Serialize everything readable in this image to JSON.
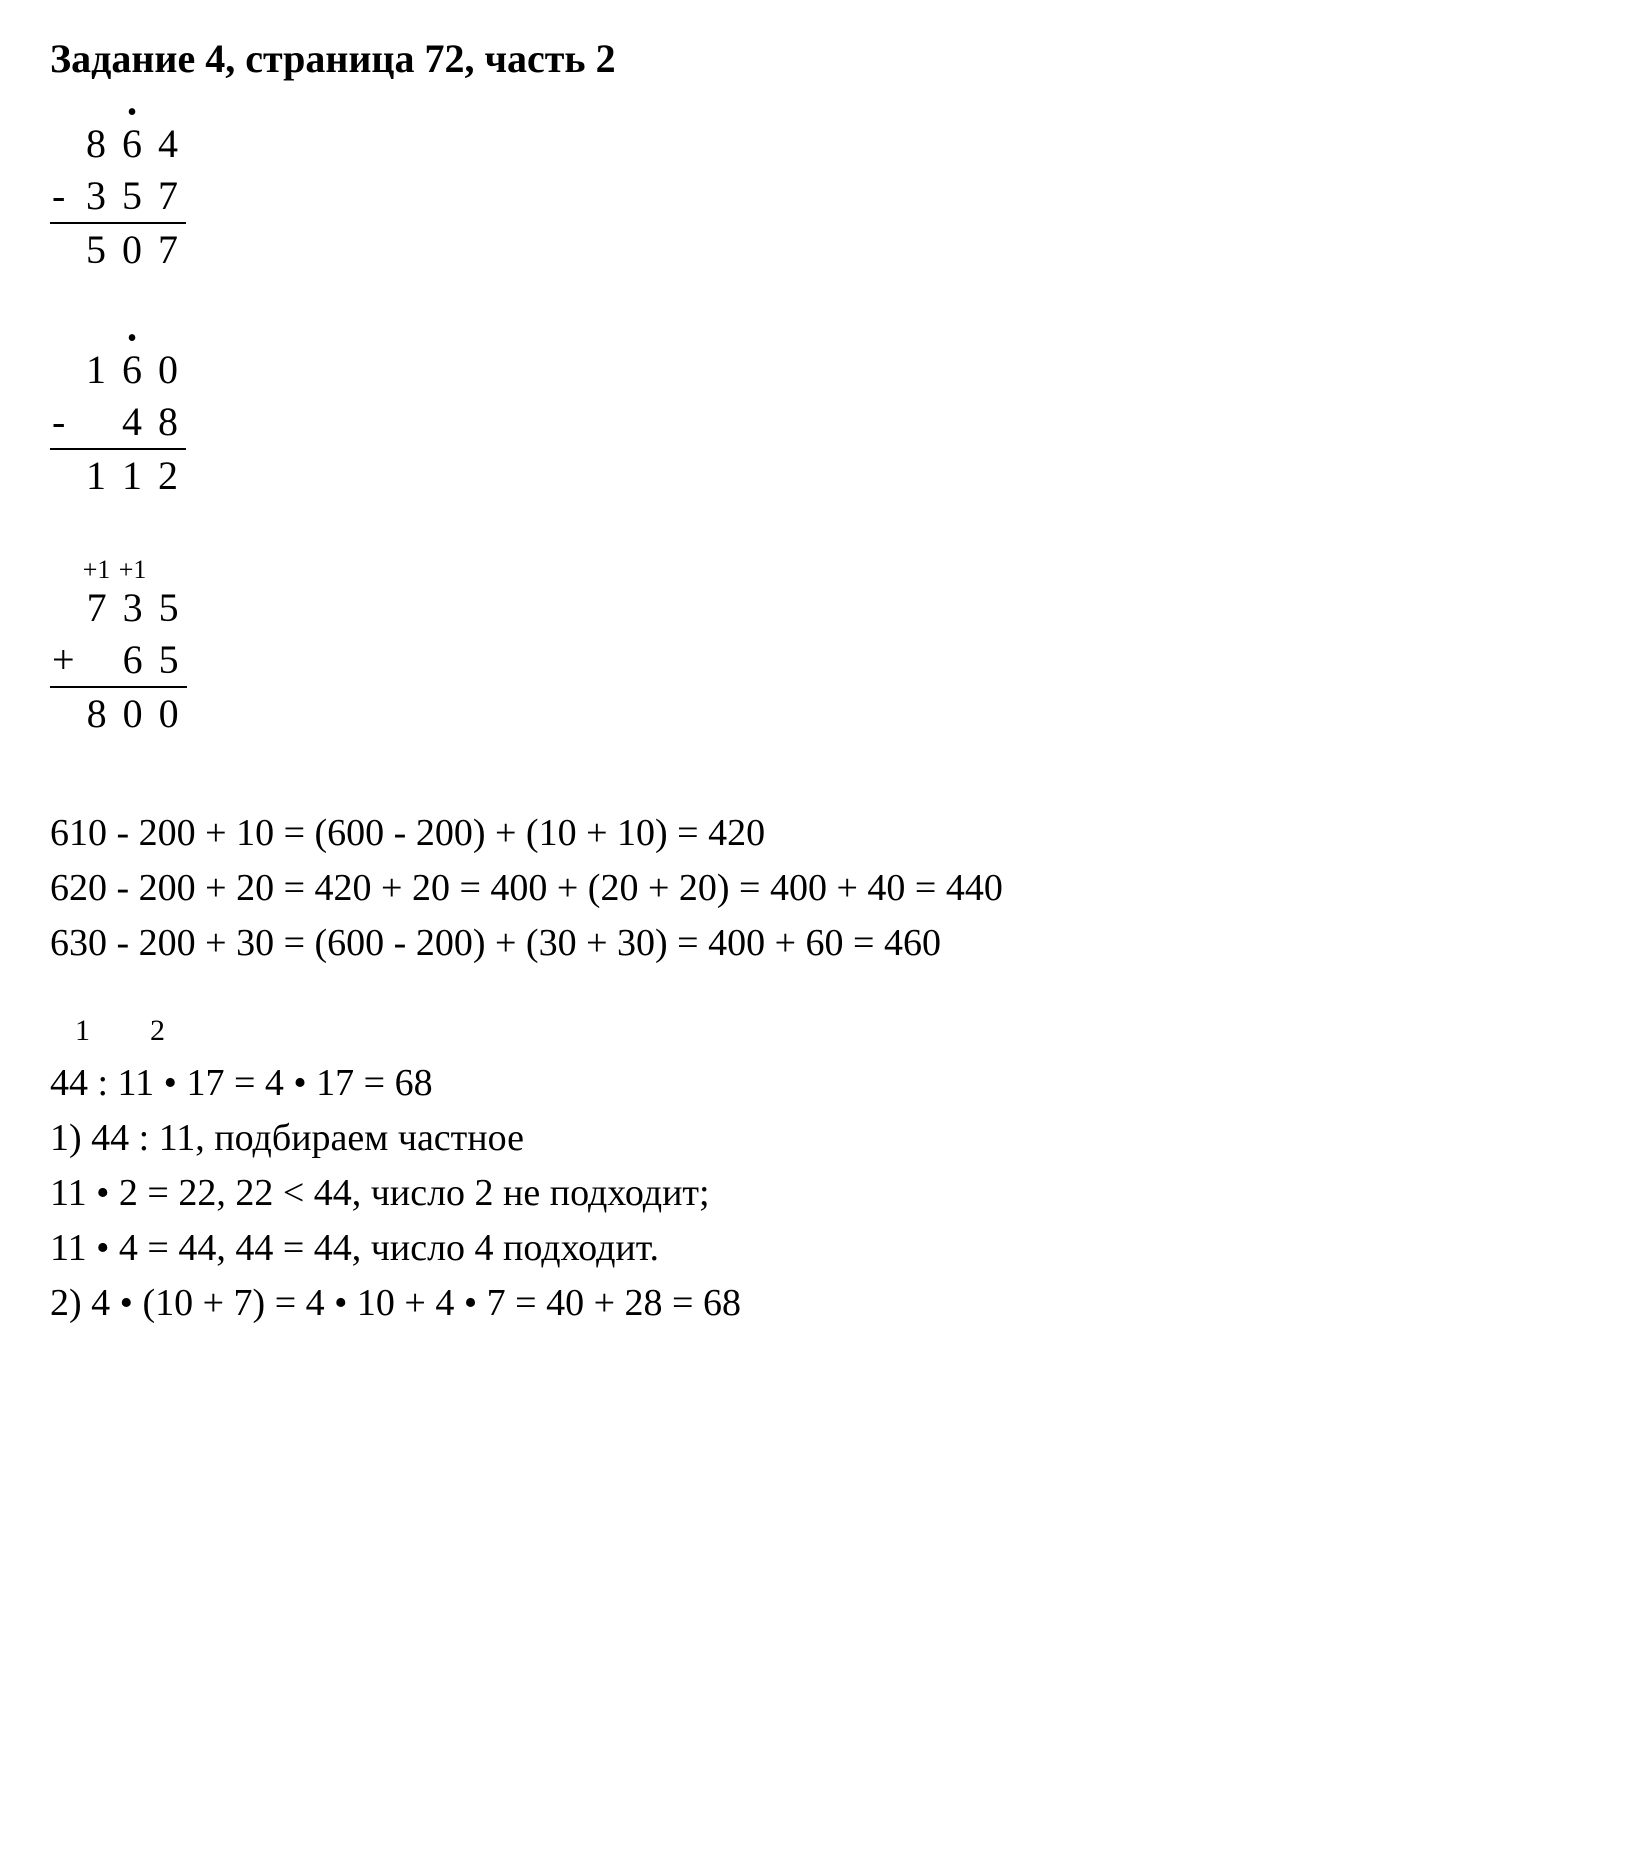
{
  "title": "Задание 4, страница 72, часть 2",
  "problems": {
    "p1": {
      "dot_col": 1,
      "sign": "-",
      "top": [
        "8",
        "6",
        "4"
      ],
      "bottom": [
        "3",
        "5",
        "7"
      ],
      "result": [
        "5",
        "0",
        "7"
      ]
    },
    "p2": {
      "dot_col": 1,
      "sign": "-",
      "top": [
        "1",
        "6",
        "0"
      ],
      "bottom": [
        "",
        "4",
        "8"
      ],
      "result": [
        "1",
        "1",
        "2"
      ]
    },
    "p3": {
      "carry": [
        "+1",
        "+1",
        ""
      ],
      "sign": "+",
      "top": [
        "7",
        "3",
        "5"
      ],
      "bottom": [
        "",
        "6",
        "5"
      ],
      "result": [
        "8",
        "0",
        "0"
      ]
    }
  },
  "equations": {
    "e1": "610 - 200 + 10 = (600 - 200) + (10 + 10) = 420",
    "e2": "620 - 200 + 20 = 420 + 20 = 400 + (20 + 20) = 400 + 40 = 440",
    "e3": "630 - 200 + 30 = (600 - 200) + (30 + 30) = 400 + 60 = 460"
  },
  "division": {
    "step_label_1": "1",
    "step_label_2": "2",
    "main": "44 : 11 • 17 = 4 • 17 = 68",
    "l1": "1) 44 : 11,  подбираем частное",
    "l2": "11 • 2 = 22, 22 < 44, число 2 не подходит;",
    "l3": "11 • 4 = 44, 44 = 44, число 4 подходит.",
    "l4": "2) 4 • (10 + 7) = 4 • 10 + 4 • 7 = 40 + 28 = 68"
  }
}
